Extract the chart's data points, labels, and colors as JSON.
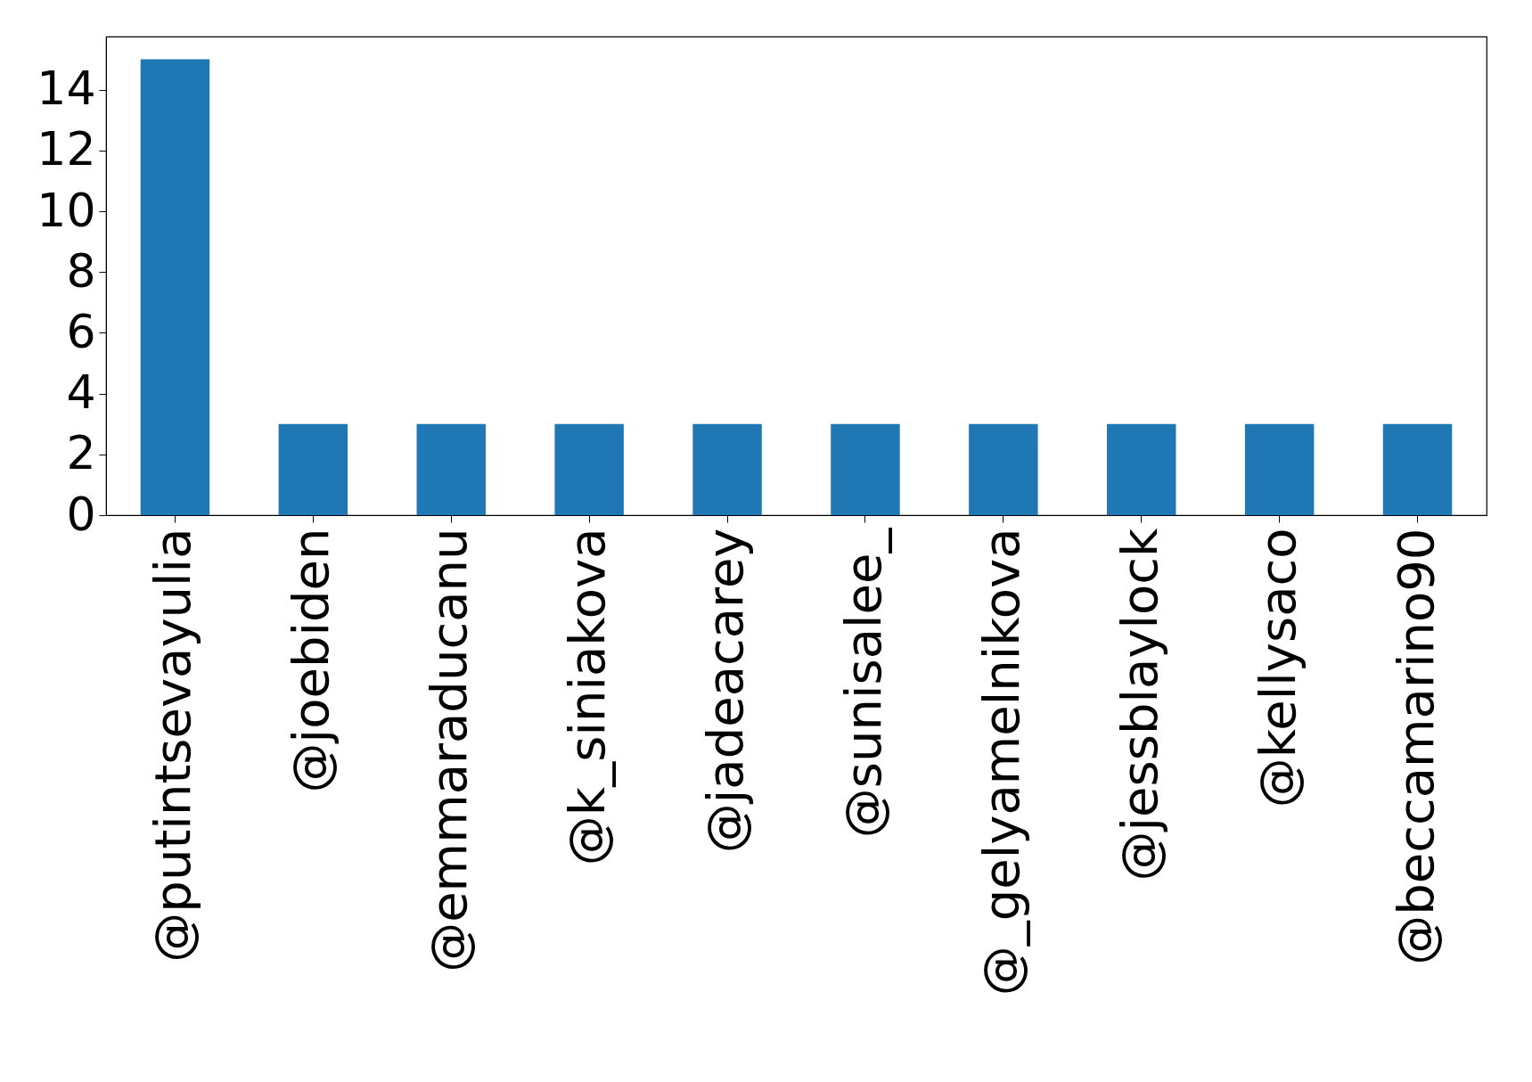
{
  "chart_data": {
    "type": "bar",
    "categories": [
      "@putintsevayulia",
      "@joebiden",
      "@emmaraducanu",
      "@k_siniakova",
      "@jadeacarey",
      "@sunisalee_",
      "@_gelyamelnikova",
      "@jessblaylock",
      "@kellysaco",
      "@beccamarino90"
    ],
    "values": [
      15,
      3,
      3,
      3,
      3,
      3,
      3,
      3,
      3,
      3
    ],
    "color": "#1f77b4",
    "ylim": [
      0,
      15.75
    ],
    "yticks": [
      0,
      2,
      4,
      6,
      8,
      10,
      12,
      14
    ],
    "grid": false
  }
}
